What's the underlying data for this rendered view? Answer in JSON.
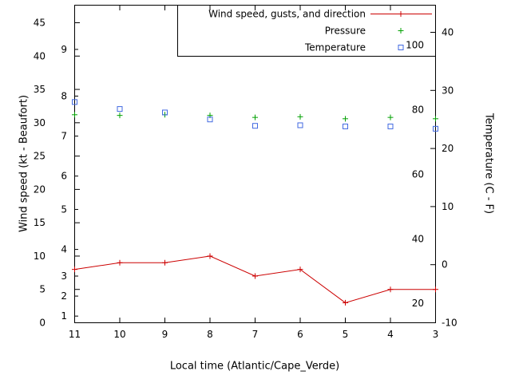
{
  "chart_data": {
    "type": "line",
    "title": "",
    "xlabel": "Local time (Atlantic/Cape_Verde)",
    "x_tick_labels": [
      "11",
      "10",
      "9",
      "8",
      "7",
      "6",
      "5",
      "4",
      "3"
    ],
    "left_axis": {
      "label": "Wind speed (kt - Beaufort)",
      "unit": "kt",
      "kt_ticks": [
        0,
        5,
        10,
        15,
        20,
        25,
        30,
        35,
        40,
        45
      ],
      "beaufort_ticks": [
        {
          "label": "1",
          "kt": 1
        },
        {
          "label": "2",
          "kt": 4
        },
        {
          "label": "3",
          "kt": 7
        },
        {
          "label": "4",
          "kt": 11
        },
        {
          "label": "5",
          "kt": 17
        },
        {
          "label": "6",
          "kt": 22
        },
        {
          "label": "7",
          "kt": 28
        },
        {
          "label": "8",
          "kt": 34
        },
        {
          "label": "9",
          "kt": 41
        }
      ]
    },
    "right_axis": {
      "label": "Temperature (C - F)",
      "unit": "C",
      "c_ticks": [
        40,
        30,
        20,
        10,
        0,
        -10
      ],
      "f_labels": [
        {
          "label": "100",
          "f": 100
        },
        {
          "label": "80",
          "f": 80
        },
        {
          "label": "60",
          "f": 60
        },
        {
          "label": "40",
          "f": 40
        },
        {
          "label": "20",
          "f": 20
        }
      ]
    },
    "series": [
      {
        "name": "Wind speed, gusts, and direction",
        "color": "#cc0000",
        "marker": "plus",
        "line": true,
        "axis": "left",
        "values": [
          8,
          9,
          9,
          10,
          7,
          8,
          3,
          5,
          5
        ]
      },
      {
        "name": "Pressure",
        "color": "#00a000",
        "marker": "plus",
        "line": false,
        "axis": "left",
        "note": "pressure scale not labeled on chart; values are display positions on the left kt scale",
        "values": [
          31.2,
          31.1,
          31.2,
          31.1,
          30.8,
          30.9,
          30.6,
          30.8,
          30.6
        ]
      },
      {
        "name": "Temperature",
        "color": "#4169e1",
        "marker": "open-square",
        "line": false,
        "axis": "right",
        "values": [
          28.0,
          26.8,
          26.2,
          25.0,
          23.9,
          24.0,
          23.8,
          23.8,
          23.4
        ]
      }
    ],
    "legend": {
      "position": "top-right",
      "box": true
    }
  }
}
